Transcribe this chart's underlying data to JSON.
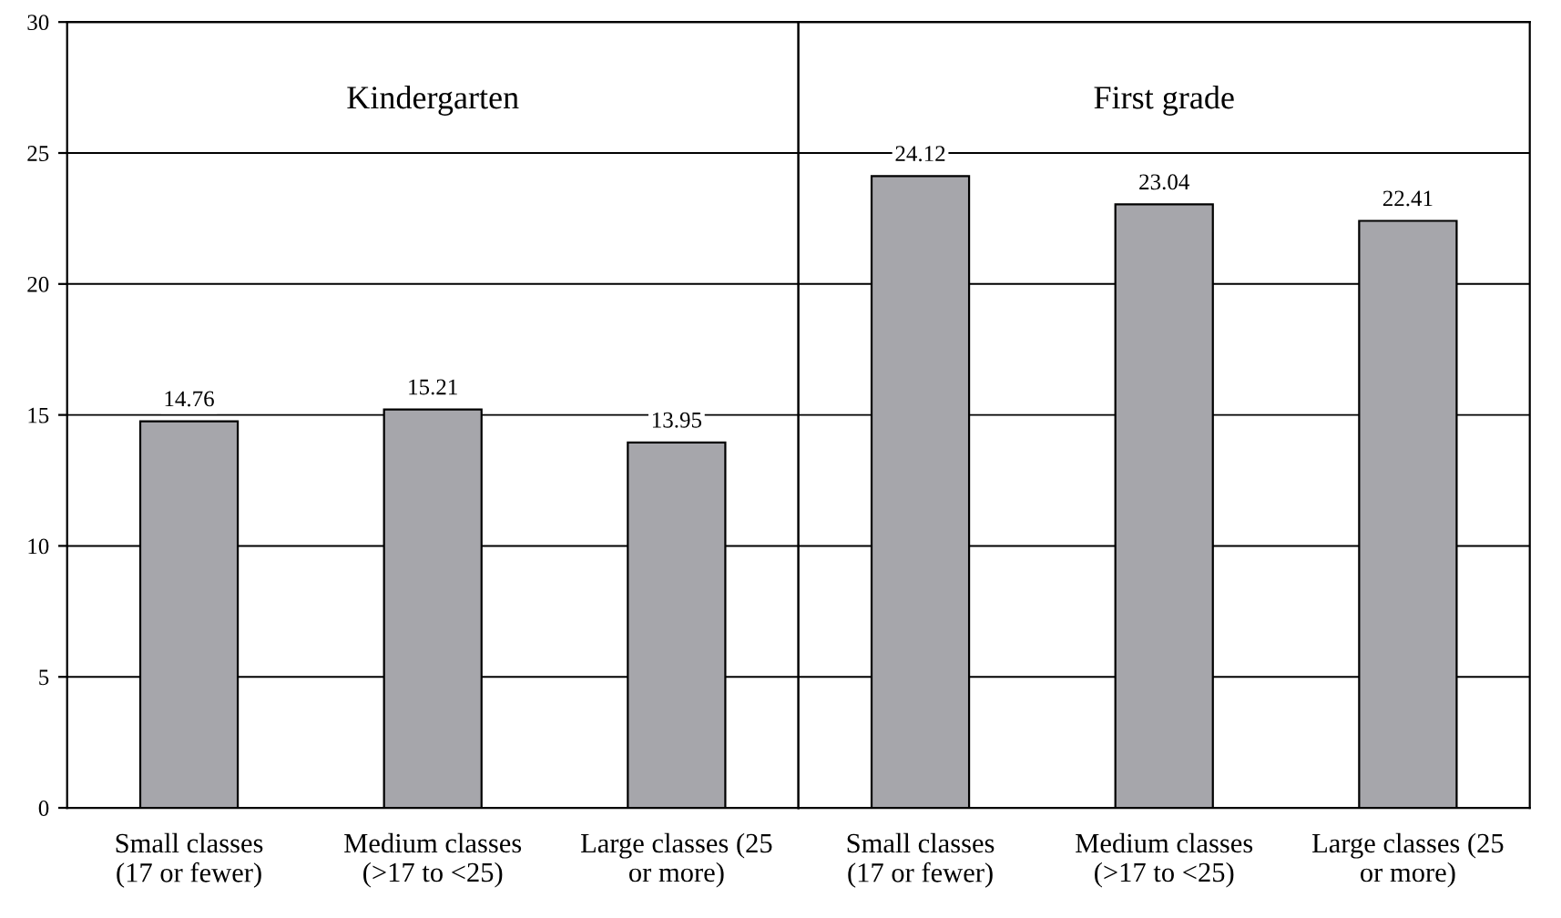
{
  "chart_data": [
    {
      "type": "bar",
      "title": "Kindergarten",
      "categories": [
        "Small classes\n(17 or fewer)",
        "Medium classes\n(>17 to <25)",
        "Large classes (25\nor more)"
      ],
      "values": [
        14.76,
        15.21,
        13.95
      ],
      "color": "#a6a6ab",
      "ylim": [
        0,
        30
      ],
      "yticks": [
        0,
        5,
        10,
        15,
        20,
        25,
        30
      ],
      "grid": "y",
      "data_labels": true
    },
    {
      "type": "bar",
      "title": "First grade",
      "categories": [
        "Small classes\n(17 or fewer)",
        "Medium classes\n(>17 to <25)",
        "Large classes (25\nor more)"
      ],
      "values": [
        24.12,
        23.04,
        22.41
      ],
      "color": "#a6a6ab",
      "ylim": [
        0,
        30
      ],
      "yticks": [
        0,
        5,
        10,
        15,
        20,
        25,
        30
      ],
      "grid": "y",
      "data_labels": true,
      "tick_labels": "x"
    }
  ]
}
